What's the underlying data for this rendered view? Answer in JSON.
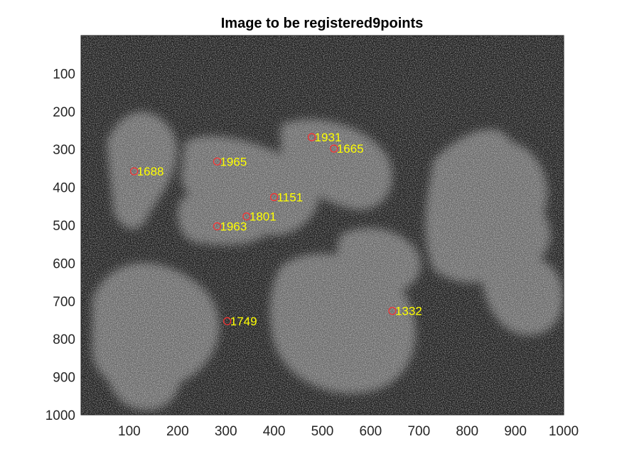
{
  "chart_data": {
    "type": "scatter",
    "title": "Image to be registered9points",
    "xlabel": "",
    "ylabel": "",
    "xlim": [
      0,
      1000
    ],
    "ylim": [
      0,
      1000
    ],
    "y_reversed": true,
    "x_ticks": [
      100,
      200,
      300,
      400,
      500,
      600,
      700,
      800,
      900,
      1000
    ],
    "y_ticks": [
      100,
      200,
      300,
      400,
      500,
      600,
      700,
      800,
      900,
      1000
    ],
    "background": "noisy grayscale image with lighter irregular blob regions",
    "marker_color": "#ff3030",
    "label_color": "#ffff00",
    "points": [
      {
        "id": "1688",
        "x": 110,
        "y": 358
      },
      {
        "id": "1965",
        "x": 282,
        "y": 332
      },
      {
        "id": "1931",
        "x": 478,
        "y": 268
      },
      {
        "id": "1665",
        "x": 524,
        "y": 298
      },
      {
        "id": "1151",
        "x": 400,
        "y": 426
      },
      {
        "id": "1801",
        "x": 343,
        "y": 477
      },
      {
        "id": "1963",
        "x": 282,
        "y": 503
      },
      {
        "id": "1749",
        "x": 303,
        "y": 753
      },
      {
        "id": "1332",
        "x": 645,
        "y": 726
      }
    ]
  }
}
